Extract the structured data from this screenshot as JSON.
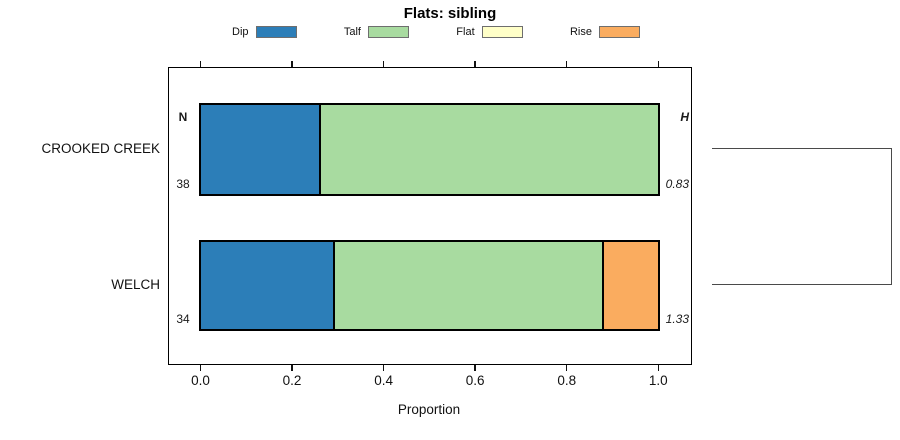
{
  "title": "Flats: sibling",
  "chart_data": {
    "type": "stacked_bar_horizontal",
    "title": "Flats: sibling",
    "xlabel": "Proportion",
    "xlim": [
      0,
      1
    ],
    "x_ticks": [
      "0.0",
      "0.2",
      "0.4",
      "0.6",
      "0.8",
      "1.0"
    ],
    "x_tick_values": [
      0,
      0.2,
      0.4,
      0.6,
      0.8,
      1.0
    ],
    "grid": false,
    "legend_position": "top",
    "categories": [
      "CROOKED CREEK",
      "WELCH"
    ],
    "series": [
      {
        "name": "Dip",
        "color": "#2C7EB8",
        "values": [
          0.263,
          0.294
        ]
      },
      {
        "name": "Talf",
        "color": "#A8DBA0",
        "values": [
          0.737,
          0.588
        ]
      },
      {
        "name": "Flat",
        "color": "#FFFFC8",
        "values": [
          0,
          0
        ]
      },
      {
        "name": "Rise",
        "color": "#FAAC5F",
        "values": [
          0,
          0.118
        ]
      }
    ],
    "annotations": {
      "n_header": "N",
      "h_header": "H",
      "n_values": [
        "38",
        "34"
      ],
      "h_values": [
        "0.83",
        "1.33"
      ]
    }
  }
}
